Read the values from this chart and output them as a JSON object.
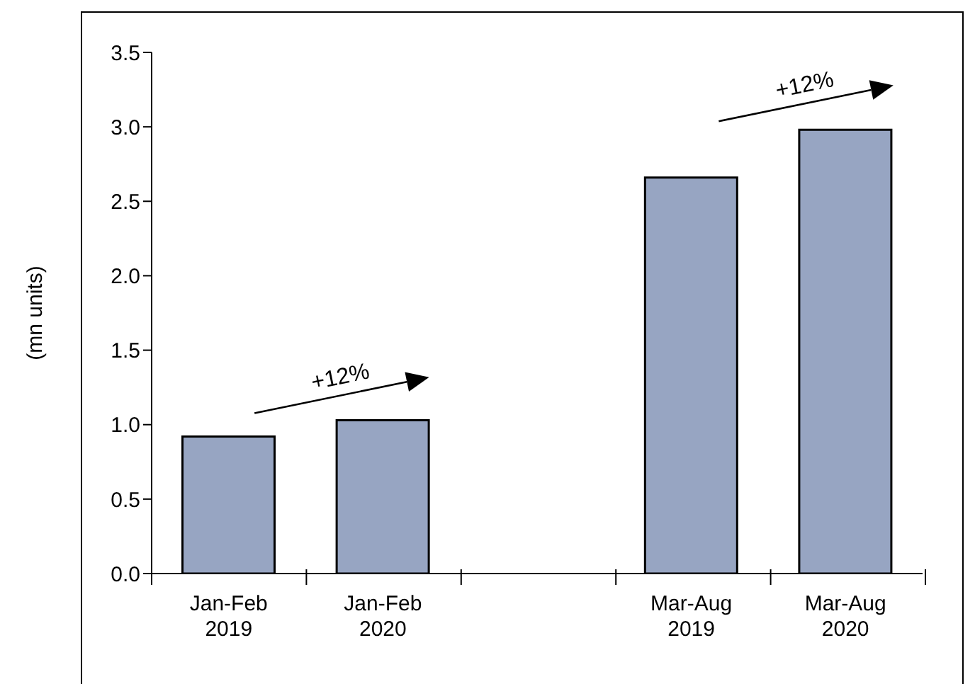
{
  "chart_data": {
    "type": "bar",
    "ylabel": "(mn units)",
    "categories": [
      "Jan-Feb 2019",
      "Jan-Feb 2020",
      null,
      "Mar-Aug 2019",
      "Mar-Aug 2020"
    ],
    "values": [
      0.92,
      1.03,
      null,
      2.66,
      2.98
    ],
    "color": "#97a5c2",
    "ylim": [
      0,
      3.5
    ],
    "yticks": [
      {
        "value": 0,
        "label": "0.0"
      },
      0.5,
      {
        "value": 1,
        "label": "1.0"
      },
      1.5,
      {
        "value": 2,
        "label": "2.0"
      },
      2.5,
      {
        "value": 3,
        "label": "3.0"
      },
      3.5
    ],
    "grid": false,
    "legend": false,
    "annotations": [
      "+12%",
      "+12%"
    ]
  }
}
